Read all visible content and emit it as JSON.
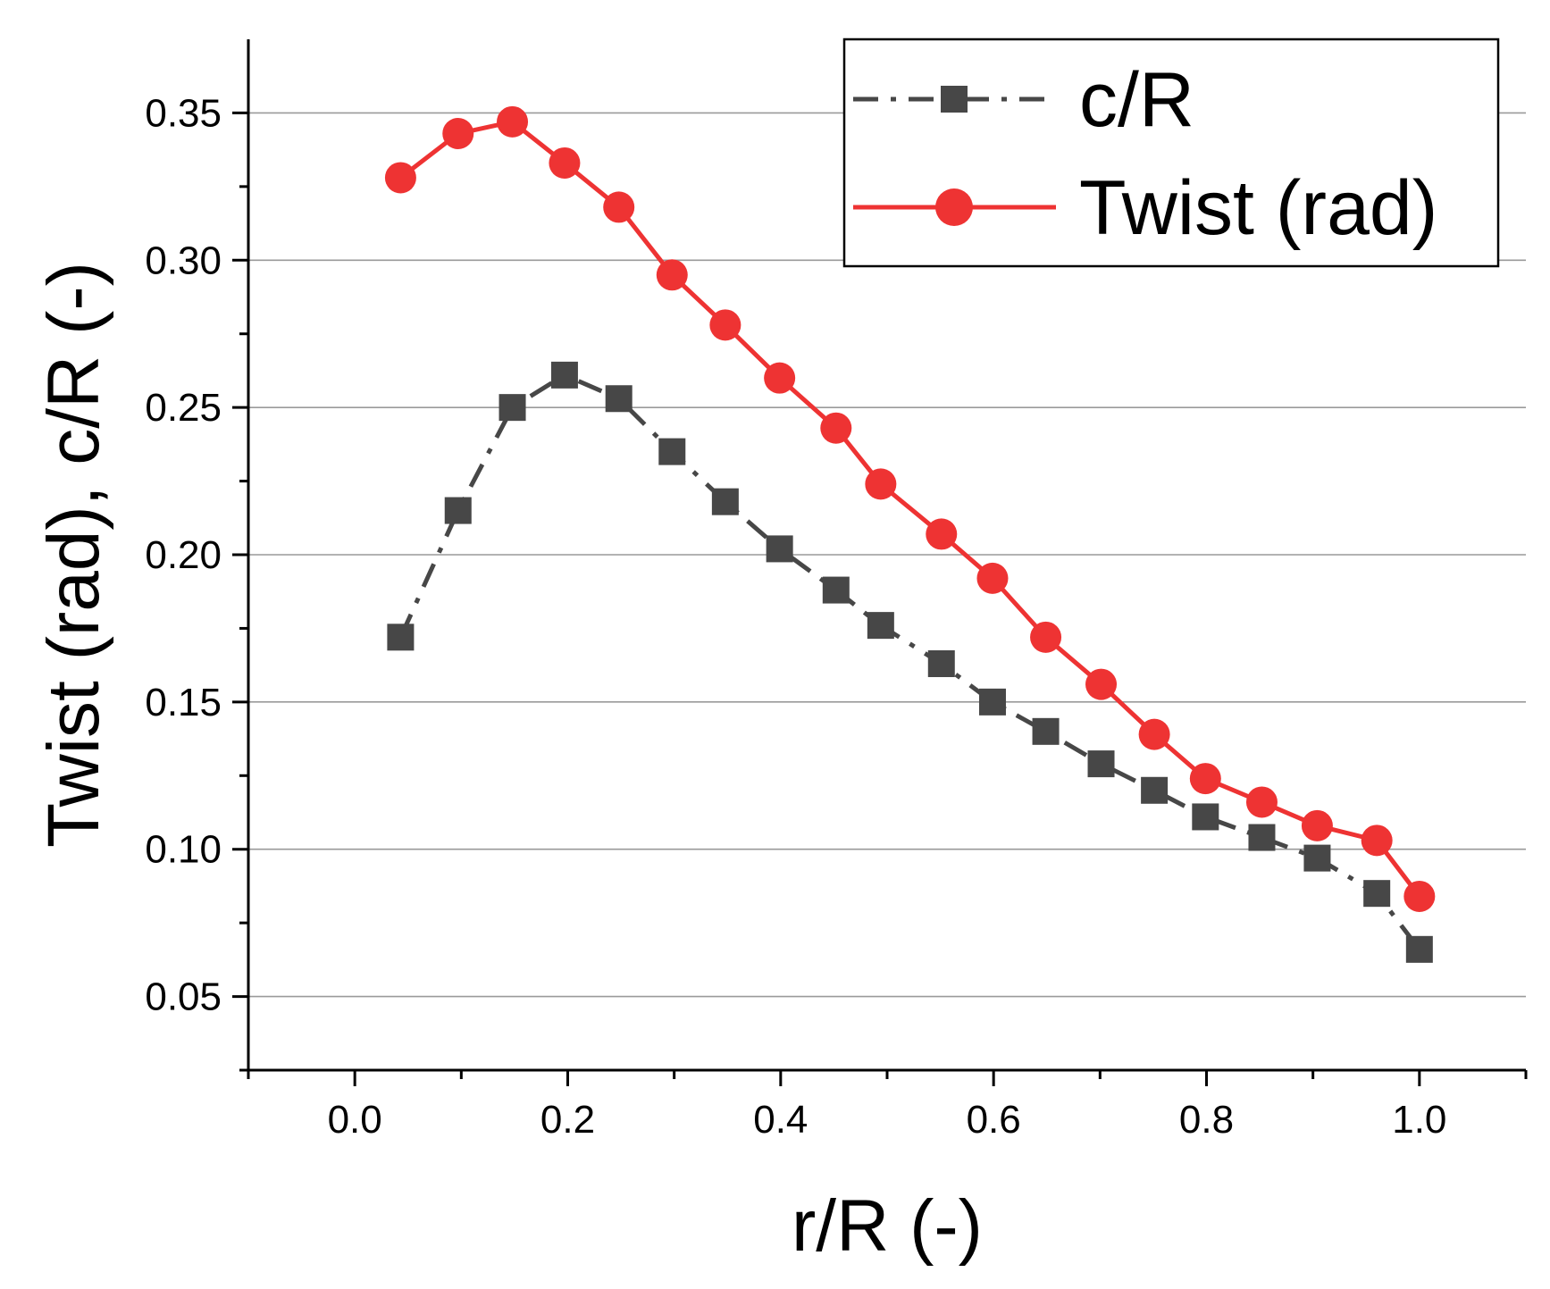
{
  "chart_data": {
    "type": "line",
    "xlabel": "r/R (-)",
    "ylabel": "Twist (rad), c/R (-)",
    "xlim": [
      -0.1,
      1.1
    ],
    "ylim": [
      0.025,
      0.375
    ],
    "xticks": [
      0.0,
      0.2,
      0.4,
      0.6,
      0.8,
      1.0
    ],
    "xtick_labels": [
      "0.0",
      "0.2",
      "0.4",
      "0.6",
      "0.8",
      "1.0"
    ],
    "yticks": [
      0.05,
      0.1,
      0.15,
      0.2,
      0.25,
      0.3,
      0.35
    ],
    "ytick_labels": [
      "0.05",
      "0.10",
      "0.15",
      "0.20",
      "0.25",
      "0.30",
      "0.35"
    ],
    "grid": "horizontal",
    "legend_position": "top-right",
    "x": [
      0.043,
      0.097,
      0.148,
      0.197,
      0.248,
      0.298,
      0.348,
      0.399,
      0.452,
      0.494,
      0.551,
      0.599,
      0.649,
      0.701,
      0.751,
      0.799,
      0.852,
      0.904,
      0.96,
      1.0
    ],
    "series": [
      {
        "name": "c/R",
        "color": "#474747",
        "line_style": "dash-dot",
        "marker": "square",
        "values": [
          0.172,
          0.215,
          0.25,
          0.261,
          0.253,
          0.235,
          0.218,
          0.202,
          0.188,
          0.176,
          0.163,
          0.15,
          0.14,
          0.129,
          0.12,
          0.111,
          0.104,
          0.097,
          0.085,
          0.066
        ]
      },
      {
        "name": "Twist (rad)",
        "color": "#ee3333",
        "line_style": "solid",
        "marker": "circle",
        "values": [
          0.328,
          0.343,
          0.347,
          0.333,
          0.318,
          0.295,
          0.278,
          0.26,
          0.243,
          0.224,
          0.207,
          0.192,
          0.172,
          0.156,
          0.139,
          0.124,
          0.116,
          0.108,
          0.103,
          0.084
        ]
      }
    ]
  }
}
